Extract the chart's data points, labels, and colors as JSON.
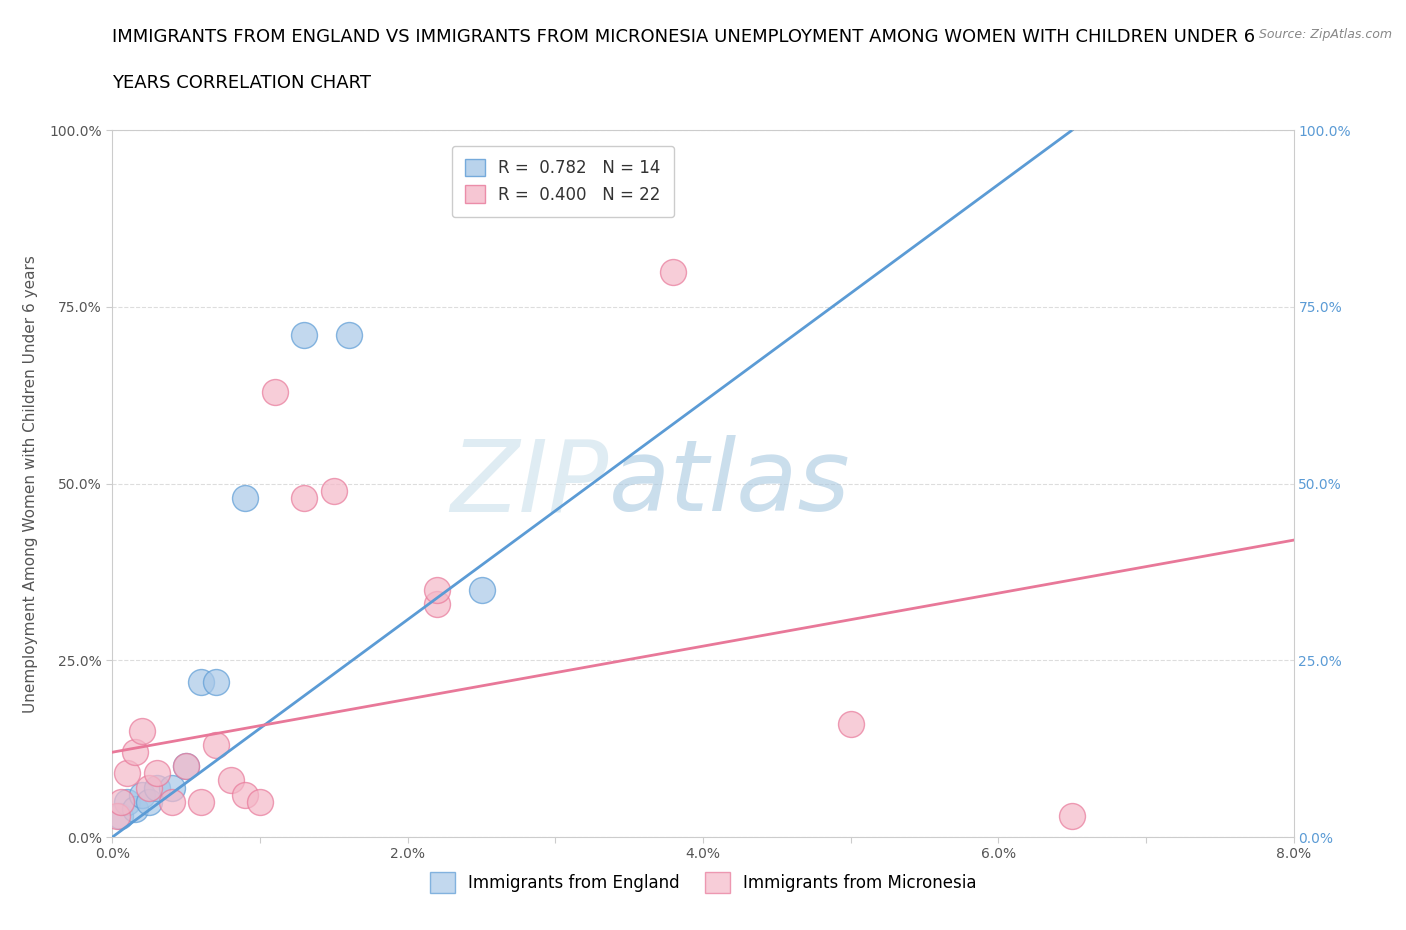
{
  "title_line1": "IMMIGRANTS FROM ENGLAND VS IMMIGRANTS FROM MICRONESIA UNEMPLOYMENT AMONG WOMEN WITH CHILDREN UNDER 6",
  "title_line2": "YEARS CORRELATION CHART",
  "source": "Source: ZipAtlas.com",
  "ylabel": "Unemployment Among Women with Children Under 6 years",
  "xlim": [
    0.0,
    0.08
  ],
  "ylim": [
    0.0,
    1.0
  ],
  "xticks": [
    0.0,
    0.01,
    0.02,
    0.03,
    0.04,
    0.05,
    0.06,
    0.07,
    0.08
  ],
  "xticklabels": [
    "0.0%",
    "",
    "2.0%",
    "",
    "4.0%",
    "",
    "6.0%",
    "",
    "8.0%"
  ],
  "yticks": [
    0.0,
    0.25,
    0.5,
    0.75,
    1.0
  ],
  "yticklabels_left": [
    "0.0%",
    "25.0%",
    "50.0%",
    "75.0%",
    "100.0%"
  ],
  "yticklabels_right": [
    "0.0%",
    "25.0%",
    "50.0%",
    "75.0%",
    "100.0%"
  ],
  "england_color": "#a8c8e8",
  "england_edge": "#5b9bd5",
  "micronesia_color": "#f4b8c8",
  "micronesia_edge": "#e87899",
  "england_R": 0.782,
  "england_N": 14,
  "micronesia_R": 0.4,
  "micronesia_N": 22,
  "england_scatter_x": [
    0.0005,
    0.001,
    0.0015,
    0.002,
    0.0025,
    0.003,
    0.004,
    0.005,
    0.006,
    0.007,
    0.009,
    0.013,
    0.016,
    0.025
  ],
  "england_scatter_y": [
    0.03,
    0.05,
    0.04,
    0.06,
    0.05,
    0.07,
    0.07,
    0.1,
    0.22,
    0.22,
    0.48,
    0.71,
    0.71,
    0.35
  ],
  "micronesia_scatter_x": [
    0.0003,
    0.0006,
    0.001,
    0.0015,
    0.002,
    0.0025,
    0.003,
    0.004,
    0.005,
    0.006,
    0.007,
    0.008,
    0.009,
    0.01,
    0.011,
    0.013,
    0.015,
    0.022,
    0.022,
    0.038,
    0.05,
    0.065
  ],
  "micronesia_scatter_y": [
    0.03,
    0.05,
    0.09,
    0.12,
    0.15,
    0.07,
    0.09,
    0.05,
    0.1,
    0.05,
    0.13,
    0.08,
    0.06,
    0.05,
    0.63,
    0.48,
    0.49,
    0.33,
    0.35,
    0.8,
    0.16,
    0.03
  ],
  "england_line_x0": 0.0,
  "england_line_y0": 0.0,
  "england_line_x1": 0.065,
  "england_line_y1": 1.0,
  "micronesia_line_x0": 0.0,
  "micronesia_line_y0": 0.12,
  "micronesia_line_x1": 0.08,
  "micronesia_line_y1": 0.42,
  "watermark_zip": "ZIP",
  "watermark_atlas": "atlas",
  "background_color": "#ffffff",
  "grid_color": "#dddddd",
  "title_fontsize": 13,
  "axis_label_fontsize": 11,
  "tick_fontsize": 10,
  "legend_fontsize": 12,
  "right_tick_color": "#5b9bd5"
}
